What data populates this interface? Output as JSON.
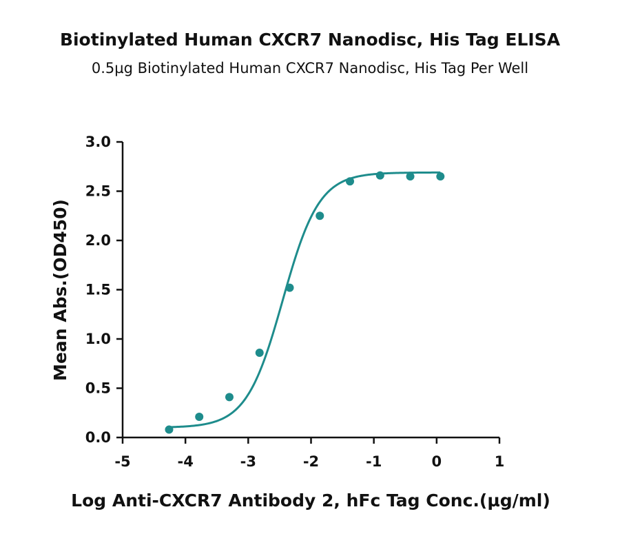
{
  "chart_data": {
    "type": "scatter",
    "title": "Biotinylated Human CXCR7 Nanodisc, His Tag ELISA",
    "subtitle": "0.5µg Biotinylated Human CXCR7 Nanodisc, His Tag Per Well",
    "xlabel": "Log Anti-CXCR7 Antibody 2, hFc Tag Conc.(µg/ml)",
    "ylabel": "Mean Abs.(OD450)",
    "xlim": [
      -5,
      1
    ],
    "ylim": [
      0,
      3.0
    ],
    "x_ticks": [
      -5,
      -4,
      -3,
      -2,
      -1,
      0,
      1
    ],
    "x_tick_labels": [
      "-5",
      "-4",
      "-3",
      "-2",
      "-1",
      "0",
      "1"
    ],
    "y_ticks": [
      0,
      0.5,
      1.0,
      1.5,
      2.0,
      2.5,
      3.0
    ],
    "y_tick_labels": [
      "0.0",
      "0.5",
      "1.0",
      "1.5",
      "2.0",
      "2.5",
      "3.0"
    ],
    "grid": false,
    "legend": "none",
    "color": "#1e8c8c",
    "series": [
      {
        "points": [
          {
            "x": -4.26,
            "y": 0.08
          },
          {
            "x": -3.78,
            "y": 0.21
          },
          {
            "x": -3.3,
            "y": 0.41
          },
          {
            "x": -2.82,
            "y": 0.86
          },
          {
            "x": -2.34,
            "y": 1.52
          },
          {
            "x": -1.86,
            "y": 2.25
          },
          {
            "x": -1.38,
            "y": 2.6
          },
          {
            "x": -0.9,
            "y": 2.66
          },
          {
            "x": -0.42,
            "y": 2.65
          },
          {
            "x": 0.06,
            "y": 2.65
          }
        ],
        "fit": {
          "model": "4PL",
          "bottom": 0.1,
          "top": 2.69,
          "log_ec50": -2.45,
          "hill_slope": 1.5,
          "x_range": [
            -4.26,
            0.06
          ]
        }
      }
    ]
  }
}
